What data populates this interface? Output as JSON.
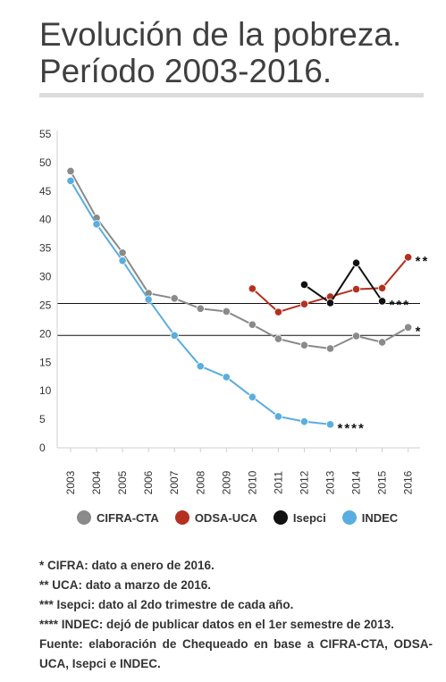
{
  "title": {
    "line1": "Evolución de la pobreza.",
    "line2": "Período 2003-2016."
  },
  "chart_data": {
    "type": "line",
    "x": [
      2003,
      2004,
      2005,
      2006,
      2007,
      2008,
      2009,
      2010,
      2011,
      2012,
      2013,
      2014,
      2015,
      2016
    ],
    "ylim": [
      0,
      55
    ],
    "y_ticks": [
      0,
      5,
      10,
      15,
      20,
      25,
      30,
      35,
      40,
      45,
      50,
      55
    ],
    "reference_lines": [
      25.3,
      19.7
    ],
    "series": [
      {
        "name": "CIFRA-CTA",
        "color": "#8a8a8a",
        "points": [
          [
            2003,
            48.5
          ],
          [
            2004,
            40.3
          ],
          [
            2005,
            34.2
          ],
          [
            2006,
            27.1
          ],
          [
            2007,
            26.2
          ],
          [
            2008,
            24.4
          ],
          [
            2009,
            23.9
          ],
          [
            2010,
            21.6
          ],
          [
            2011,
            19.1
          ],
          [
            2012,
            18.0
          ],
          [
            2013,
            17.4
          ],
          [
            2014,
            19.6
          ],
          [
            2015,
            18.5
          ],
          [
            2016,
            21.1
          ]
        ],
        "end_marker": "*"
      },
      {
        "name": "ODSA-UCA",
        "color": "#b5301f",
        "points": [
          [
            2010,
            27.9
          ],
          [
            2011,
            23.8
          ],
          [
            2012,
            25.2
          ],
          [
            2013,
            26.5
          ],
          [
            2014,
            27.8
          ],
          [
            2015,
            28.0
          ],
          [
            2016,
            33.4
          ]
        ],
        "end_marker": "**"
      },
      {
        "name": "Isepci",
        "color": "#111111",
        "points": [
          [
            2012,
            28.6
          ],
          [
            2013,
            25.4
          ],
          [
            2014,
            32.4
          ],
          [
            2015,
            25.7
          ]
        ],
        "end_marker": "***"
      },
      {
        "name": "INDEC",
        "color": "#5aade0",
        "points": [
          [
            2003,
            46.8
          ],
          [
            2004,
            39.2
          ],
          [
            2005,
            32.8
          ],
          [
            2006,
            26.0
          ],
          [
            2007,
            19.7
          ],
          [
            2008,
            14.3
          ],
          [
            2009,
            12.4
          ],
          [
            2010,
            8.9
          ],
          [
            2011,
            5.5
          ],
          [
            2012,
            4.6
          ],
          [
            2013,
            4.1
          ]
        ],
        "end_marker": "****"
      }
    ]
  },
  "notes": [
    "* CIFRA: dato a enero de 2016.",
    "** UCA: dato a marzo de 2016.",
    "*** Isepci: dato al 2do trimestre de cada año.",
    "**** INDEC: dejó de publicar datos en el 1er semestre de 2013."
  ],
  "source": "Fuente: elaboración de Chequeado en base a CIFRA-CTA, ODSA-UCA, Isepci e INDEC."
}
